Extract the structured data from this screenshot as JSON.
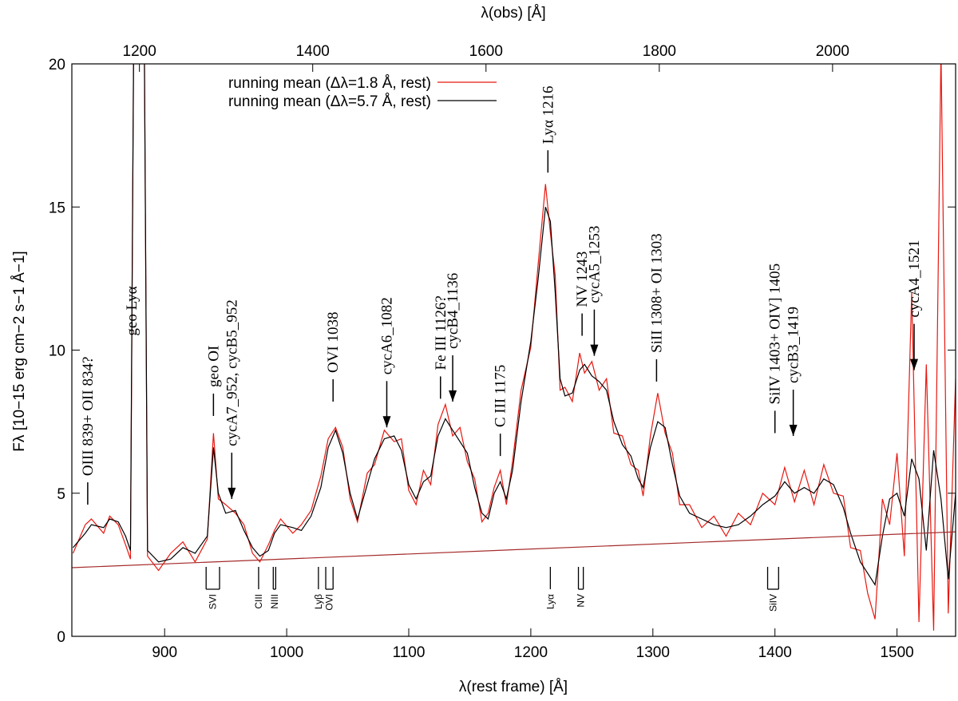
{
  "chart_data": {
    "type": "line",
    "xlabel": "λ(rest frame) [Å]",
    "x2label": "λ(obs) [Å]",
    "ylabel": "Fλ [10−15 erg cm−2 s−1 Å−1]",
    "xlim": [
      824,
      1548
    ],
    "xticks": [
      900,
      1000,
      1100,
      1200,
      1300,
      1400,
      1500
    ],
    "x2lim": [
      1122,
      2142
    ],
    "x2ticks": [
      1200,
      1400,
      1600,
      1800,
      2000
    ],
    "ylim": [
      0,
      20
    ],
    "yticks": [
      0,
      5,
      10,
      15,
      20
    ],
    "legend": "top-left",
    "series": [
      {
        "name": "running mean (Δλ=1.8 Å, rest)",
        "color": "#e8170f",
        "x": [
          825,
          835,
          840,
          850,
          855,
          862,
          868,
          872,
          876,
          882,
          886,
          895,
          905,
          915,
          925,
          935,
          940,
          944,
          950,
          958,
          965,
          972,
          978,
          985,
          990,
          995,
          1005,
          1012,
          1020,
          1028,
          1034,
          1040,
          1046,
          1052,
          1058,
          1066,
          1072,
          1080,
          1088,
          1094,
          1100,
          1106,
          1112,
          1118,
          1124,
          1130,
          1136,
          1142,
          1148,
          1154,
          1160,
          1165,
          1170,
          1175,
          1180,
          1185,
          1192,
          1200,
          1206,
          1212,
          1216,
          1220,
          1224,
          1228,
          1234,
          1240,
          1244,
          1250,
          1256,
          1262,
          1268,
          1275,
          1282,
          1288,
          1292,
          1298,
          1304,
          1310,
          1316,
          1322,
          1330,
          1340,
          1350,
          1360,
          1370,
          1380,
          1390,
          1400,
          1408,
          1416,
          1424,
          1432,
          1440,
          1448,
          1456,
          1462,
          1470,
          1476,
          1482,
          1488,
          1494,
          1500,
          1506,
          1512,
          1518,
          1524,
          1530,
          1536,
          1542,
          1548
        ],
        "values": [
          2.9,
          3.9,
          4.1,
          3.6,
          4.2,
          3.9,
          3.2,
          2.7,
          30,
          30,
          2.8,
          2.3,
          2.9,
          3.3,
          2.6,
          3.4,
          7.1,
          4.8,
          4.6,
          4.3,
          3.9,
          2.9,
          2.6,
          3.2,
          3.7,
          4.1,
          3.6,
          3.9,
          4.4,
          5.6,
          6.9,
          7.3,
          6.6,
          4.8,
          4.0,
          5.7,
          6.0,
          7.2,
          6.8,
          6.9,
          5.1,
          4.6,
          5.8,
          5.3,
          7.4,
          8.1,
          7.0,
          7.3,
          6.1,
          5.5,
          4.0,
          4.3,
          5.2,
          5.8,
          4.6,
          6.1,
          8.6,
          10.1,
          13.0,
          15.8,
          14.1,
          12.6,
          8.6,
          8.7,
          8.2,
          9.9,
          9.2,
          9.6,
          8.6,
          9.0,
          7.1,
          7.0,
          6.0,
          5.8,
          4.9,
          7.0,
          8.5,
          7.1,
          6.4,
          4.6,
          4.6,
          3.8,
          4.2,
          3.5,
          4.3,
          3.9,
          5.0,
          4.6,
          5.9,
          4.7,
          5.8,
          4.6,
          6.0,
          5.0,
          4.9,
          3.1,
          3.0,
          1.5,
          0.6,
          4.8,
          3.9,
          6.4,
          2.8,
          12.0,
          0.5,
          9.5,
          0.2,
          20.5,
          0.8,
          9.0
        ]
      },
      {
        "name": "running mean (Δλ=5.7 Å, rest)",
        "color": "#000000",
        "x": [
          825,
          835,
          840,
          850,
          855,
          862,
          868,
          872,
          876,
          882,
          886,
          895,
          905,
          915,
          925,
          935,
          940,
          944,
          950,
          958,
          965,
          972,
          978,
          985,
          990,
          995,
          1005,
          1012,
          1020,
          1028,
          1034,
          1040,
          1046,
          1052,
          1058,
          1066,
          1072,
          1080,
          1088,
          1094,
          1100,
          1106,
          1112,
          1118,
          1124,
          1130,
          1136,
          1142,
          1148,
          1154,
          1160,
          1165,
          1170,
          1175,
          1180,
          1185,
          1192,
          1200,
          1206,
          1212,
          1216,
          1220,
          1224,
          1228,
          1234,
          1240,
          1244,
          1250,
          1256,
          1262,
          1268,
          1275,
          1282,
          1288,
          1292,
          1298,
          1304,
          1310,
          1316,
          1322,
          1330,
          1340,
          1350,
          1360,
          1370,
          1380,
          1390,
          1400,
          1408,
          1416,
          1424,
          1432,
          1440,
          1448,
          1456,
          1462,
          1470,
          1476,
          1482,
          1488,
          1494,
          1500,
          1506,
          1512,
          1518,
          1524,
          1530,
          1536,
          1542,
          1548
        ],
        "values": [
          3.1,
          3.6,
          3.9,
          3.8,
          4.1,
          4.0,
          3.5,
          3.0,
          30,
          30,
          3.0,
          2.6,
          2.7,
          3.1,
          2.9,
          3.5,
          6.6,
          5.0,
          4.3,
          4.4,
          3.7,
          3.1,
          2.8,
          3.0,
          3.6,
          3.9,
          3.8,
          3.7,
          4.2,
          5.2,
          6.6,
          7.2,
          6.4,
          5.0,
          4.1,
          5.3,
          6.2,
          6.9,
          7.0,
          6.5,
          5.3,
          4.8,
          5.4,
          5.6,
          7.0,
          7.6,
          7.2,
          6.8,
          6.4,
          5.2,
          4.3,
          4.1,
          5.0,
          5.4,
          4.8,
          5.8,
          8.2,
          10.3,
          12.5,
          15.0,
          14.5,
          12.0,
          9.0,
          8.4,
          8.5,
          9.3,
          9.5,
          9.1,
          8.9,
          8.6,
          7.5,
          6.7,
          6.3,
          5.5,
          5.2,
          6.6,
          7.5,
          7.3,
          6.0,
          4.9,
          4.3,
          4.1,
          3.9,
          3.8,
          3.9,
          4.2,
          4.6,
          4.9,
          5.4,
          5.0,
          5.2,
          5.0,
          5.5,
          5.3,
          4.5,
          3.6,
          2.6,
          2.2,
          1.8,
          3.5,
          4.8,
          5.0,
          4.2,
          6.2,
          5.5,
          3.0,
          6.5,
          4.8,
          2.0,
          5.0
        ]
      }
    ],
    "continuum": {
      "color": "#a52a2a",
      "x": [
        824,
        1548
      ],
      "values": [
        2.4,
        3.65
      ]
    },
    "annotations": [
      {
        "text": "OIII 839+ OII 834?",
        "x": 837,
        "y": 4.6,
        "arrow": false
      },
      {
        "text": "geo Lyα",
        "x": 873,
        "y": 10.5,
        "arrow": false
      },
      {
        "text": "geo OI",
        "x": 940,
        "y": 7.7,
        "arrow": false
      },
      {
        "text": "cycA7_952, cycB5_952",
        "x": 955,
        "y": 4.8,
        "arrow": true
      },
      {
        "text": "OVI 1038",
        "x": 1038,
        "y": 8.2,
        "arrow": false
      },
      {
        "text": "cycA6_1082",
        "x": 1082,
        "y": 7.3,
        "arrow": true
      },
      {
        "text": "Fe III 1126?",
        "x": 1126,
        "y": 8.3,
        "arrow": false
      },
      {
        "text": "cycB4_1136",
        "x": 1136,
        "y": 8.2,
        "arrow": true
      },
      {
        "text": "C III 1175",
        "x": 1175,
        "y": 6.3,
        "arrow": false
      },
      {
        "text": "Lyα 1216",
        "x": 1214,
        "y": 16.2,
        "arrow": false
      },
      {
        "text": "NV 1243",
        "x": 1242,
        "y": 10.5,
        "arrow": false
      },
      {
        "text": "cycA5_1253",
        "x": 1252,
        "y": 9.8,
        "arrow": true
      },
      {
        "text": "SiII 1308+ OI 1303",
        "x": 1303,
        "y": 8.9,
        "arrow": false
      },
      {
        "text": "SiIV 1403+ OIV] 1405",
        "x": 1400,
        "y": 7.1,
        "arrow": false
      },
      {
        "text": "cycB3_1419",
        "x": 1415,
        "y": 7.0,
        "arrow": true
      },
      {
        "text": "cycA4_1521",
        "x": 1514,
        "y": 9.3,
        "arrow": true
      }
    ],
    "absorption": [
      {
        "label": "SVI",
        "x": [
          934,
          945
        ]
      },
      {
        "label": "CIII",
        "x": [
          977
        ]
      },
      {
        "label": "NIII",
        "x": [
          989,
          991
        ]
      },
      {
        "label": "Lyβ",
        "x": [
          1026
        ]
      },
      {
        "label": "OVI",
        "x": [
          1032,
          1038
        ]
      },
      {
        "label": "Lyα",
        "x": [
          1216
        ]
      },
      {
        "label": "NV",
        "x": [
          1239,
          1243
        ]
      },
      {
        "label": "SiIV",
        "x": [
          1394,
          1403
        ]
      }
    ]
  }
}
